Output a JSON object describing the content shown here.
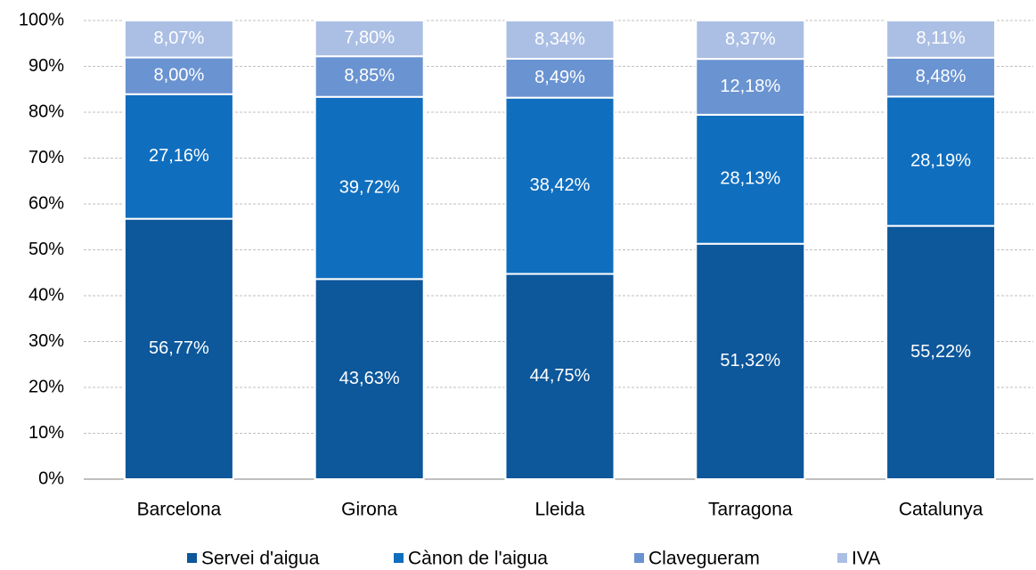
{
  "chart_data": {
    "type": "stacked_bar",
    "categories": [
      "Barcelona",
      "Girona",
      "Lleida",
      "Tarragona",
      "Catalunya"
    ],
    "series": [
      {
        "name": "Servei d'aigua",
        "color": "#0d579b",
        "values": [
          56.77,
          43.63,
          44.75,
          51.32,
          55.22
        ],
        "value_labels": [
          "56,77%",
          "43,63%",
          "44,75%",
          "51,32%",
          "55,22%"
        ]
      },
      {
        "name": "Cànon de l'aigua",
        "color": "#106ebe",
        "values": [
          27.16,
          39.72,
          38.42,
          28.13,
          28.19
        ],
        "value_labels": [
          "27,16%",
          "39,72%",
          "38,42%",
          "28,13%",
          "28,19%"
        ]
      },
      {
        "name": "Clavegueram",
        "color": "#6a93d1",
        "values": [
          8.0,
          8.85,
          8.49,
          12.18,
          8.48
        ],
        "value_labels": [
          "8,00%",
          "8,85%",
          "8,49%",
          "12,18%",
          "8,48%"
        ]
      },
      {
        "name": "IVA",
        "color": "#abbfe4",
        "values": [
          8.07,
          7.8,
          8.34,
          8.37,
          8.11
        ],
        "value_labels": [
          "8,07%",
          "7,80%",
          "8,34%",
          "8,37%",
          "8,11%"
        ]
      }
    ],
    "ylim": [
      0,
      100
    ],
    "yticks": [
      {
        "value": 0,
        "label": "0%"
      },
      {
        "value": 10,
        "label": "10%"
      },
      {
        "value": 20,
        "label": "20%"
      },
      {
        "value": 30,
        "label": "30%"
      },
      {
        "value": 40,
        "label": "40%"
      },
      {
        "value": 50,
        "label": "50%"
      },
      {
        "value": 60,
        "label": "60%"
      },
      {
        "value": 70,
        "label": "70%"
      },
      {
        "value": 80,
        "label": "80%"
      },
      {
        "value": 90,
        "label": "90%"
      },
      {
        "value": 100,
        "label": "100%"
      }
    ],
    "grid": true,
    "legend": "bottom"
  }
}
